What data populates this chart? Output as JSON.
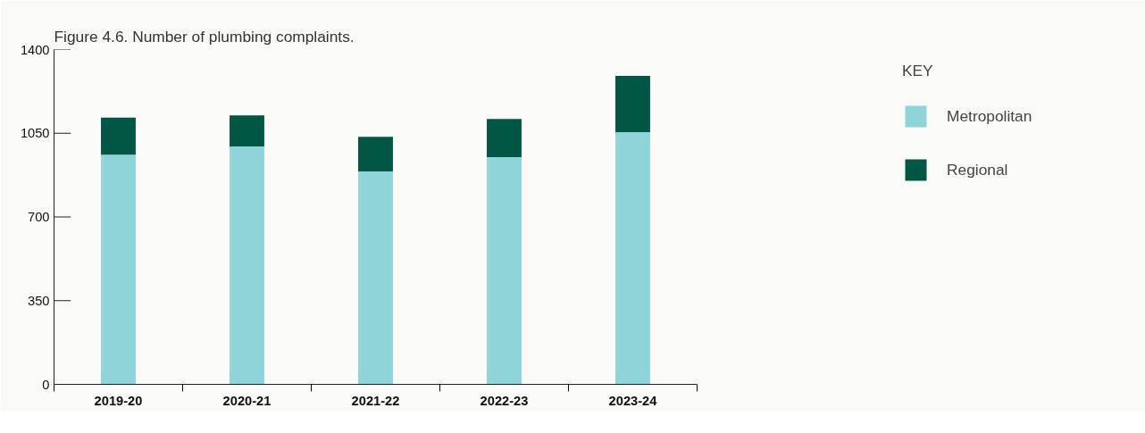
{
  "chart_data": {
    "type": "bar",
    "title": "Figure 4.6. Number of plumbing complaints.",
    "categories": [
      "2019-20",
      "2020-21",
      "2021-22",
      "2022-23",
      "2023-24"
    ],
    "stacked": true,
    "series": [
      {
        "name": "Metropolitan",
        "color": "#8fd4d8",
        "values": [
          960,
          995,
          890,
          950,
          1055
        ]
      },
      {
        "name": "Regional",
        "color": "#005844",
        "values": [
          155,
          130,
          145,
          160,
          235
        ]
      }
    ],
    "ylim": [
      0,
      1400
    ],
    "yticks": [
      0,
      350,
      700,
      1050,
      1400
    ],
    "grid": false,
    "legend": "top right",
    "legend_title": "KEY"
  }
}
